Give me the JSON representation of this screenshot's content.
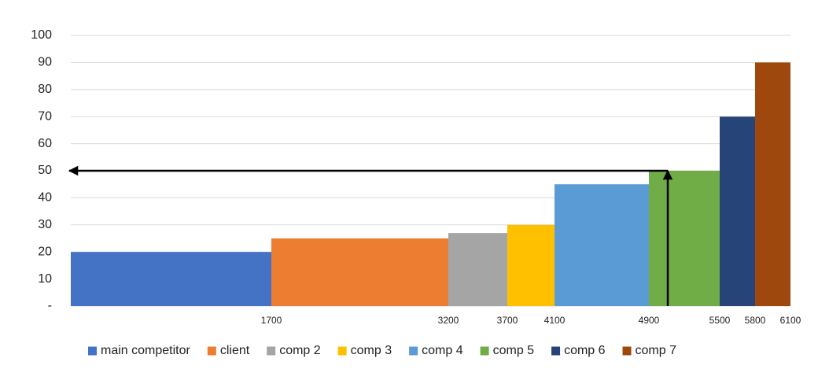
{
  "chart_data": {
    "type": "variable-width-bar",
    "categories": [
      "main competitor",
      "client",
      "comp 2",
      "comp 3",
      "comp 4",
      "comp 5",
      "comp 6",
      "comp 7"
    ],
    "bins": [
      0,
      1700,
      3200,
      3700,
      4100,
      4900,
      5500,
      5800,
      6100
    ],
    "values": [
      20,
      25,
      27,
      30,
      45,
      50,
      70,
      90
    ],
    "colors": [
      "#4472c4",
      "#ed7d31",
      "#a5a5a5",
      "#ffc000",
      "#5b9bd5",
      "#70ad47",
      "#264478",
      "#9e480e"
    ],
    "xlim": [
      0,
      6100
    ],
    "xticks": [
      1700,
      3200,
      3700,
      4100,
      4900,
      5500,
      5800,
      6100
    ],
    "ylim": [
      0,
      100
    ],
    "yticks": [
      {
        "value": 0,
        "label": "-"
      },
      10,
      20,
      30,
      40,
      50,
      60,
      70,
      80,
      90,
      100
    ],
    "grid": true,
    "legend": "bottom",
    "arrows": [
      {
        "from": [
          5060,
          50
        ],
        "to": [
          0,
          50
        ]
      },
      {
        "from": [
          5060,
          0
        ],
        "to": [
          5060,
          50
        ]
      }
    ]
  }
}
